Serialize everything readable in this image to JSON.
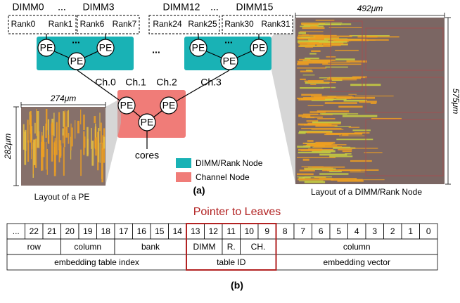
{
  "figure_a": {
    "dimm_labels": [
      "DIMM0",
      "...",
      "DIMM3",
      "DIMM12",
      "...",
      "DIMM15"
    ],
    "rank_labels": [
      "Rank0",
      "Rank1",
      "Rank6",
      "Rank7",
      "Rank24",
      "Rank25",
      "Rank30",
      "Rank31"
    ],
    "pe_labels": [
      "PE",
      "PE",
      "PE",
      "PE",
      "PE",
      "PE",
      "PE",
      "PE",
      "PE"
    ],
    "node_ellipses": [
      "...",
      "...",
      "..."
    ],
    "channel_labels": [
      "Ch.0",
      "Ch.1",
      "Ch.2",
      "Ch.3"
    ],
    "cores_label": "cores",
    "pe_layout": {
      "width": "274μm",
      "height": "282μm",
      "caption": "Layout of a PE"
    },
    "node_layout": {
      "width": "492μm",
      "height": "575μm",
      "caption": "Layout of a DIMM/Rank Node"
    },
    "legend": [
      "DIMM/Rank Node",
      "Channel Node"
    ],
    "panel_label": "(a)"
  },
  "figure_b": {
    "title": "Pointer to Leaves",
    "bit_row": [
      "...",
      22,
      21,
      20,
      19,
      18,
      17,
      16,
      15,
      14,
      13,
      12,
      11,
      10,
      9,
      8,
      7,
      6,
      5,
      4,
      3,
      2,
      1,
      0
    ],
    "field_row": [
      "row",
      "column",
      "bank",
      "DIMM",
      "R.",
      "CH.",
      "column"
    ],
    "purpose_row": [
      "embedding table index",
      "table ID",
      "embedding vector"
    ],
    "panel_label": "(b)"
  }
}
